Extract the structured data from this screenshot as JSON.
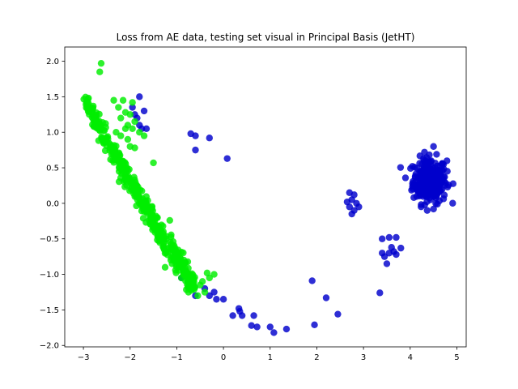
{
  "chart_data": {
    "type": "scatter",
    "title": "Loss from AE data, testing set visual in Principal Basis (JetHT)",
    "xlabel": "",
    "ylabel": "",
    "xlim": [
      -3.4,
      5.2
    ],
    "ylim": [
      -2.02,
      2.2
    ],
    "xticks": [
      -3,
      -2,
      -1,
      0,
      1,
      2,
      3,
      4,
      5
    ],
    "yticks": [
      -2.0,
      -1.5,
      -1.0,
      -0.5,
      0.0,
      0.5,
      1.0,
      1.5,
      2.0
    ],
    "xtick_labels": [
      "−3",
      "−2",
      "−1",
      "0",
      "1",
      "2",
      "3",
      "4",
      "5"
    ],
    "ytick_labels": [
      "−2.0",
      "−1.5",
      "−1.0",
      "−0.5",
      "0.0",
      "0.5",
      "1.0",
      "1.5",
      "2.0"
    ],
    "grid": false,
    "legend": "none",
    "series": [
      {
        "color": "#0000cc",
        "points": [
          [
            -1.95,
            1.35
          ],
          [
            -1.8,
            1.5
          ],
          [
            -1.7,
            1.3
          ],
          [
            -1.85,
            1.2
          ],
          [
            -1.75,
            1.05
          ],
          [
            -1.65,
            1.05
          ],
          [
            -1.9,
            1.25
          ],
          [
            -1.8,
            1.1
          ],
          [
            -2.35,
            0.75
          ],
          [
            -0.7,
            0.98
          ],
          [
            -0.6,
            0.95
          ],
          [
            -0.6,
            0.75
          ],
          [
            -0.3,
            0.92
          ],
          [
            0.08,
            0.63
          ],
          [
            -0.9,
            -1.05
          ],
          [
            -0.7,
            -1.15
          ],
          [
            -0.6,
            -1.3
          ],
          [
            -0.4,
            -1.2
          ],
          [
            -0.3,
            -1.3
          ],
          [
            -0.2,
            -1.25
          ],
          [
            -0.15,
            -1.35
          ],
          [
            0.0,
            -1.35
          ],
          [
            -0.85,
            -0.85
          ],
          [
            -0.65,
            -1.05
          ],
          [
            0.2,
            -1.58
          ],
          [
            0.33,
            -1.48
          ],
          [
            0.35,
            -1.52
          ],
          [
            0.4,
            -1.58
          ],
          [
            0.6,
            -1.72
          ],
          [
            0.65,
            -1.58
          ],
          [
            0.72,
            -1.74
          ],
          [
            1.0,
            -1.74
          ],
          [
            1.08,
            -1.82
          ],
          [
            1.35,
            -1.77
          ],
          [
            1.9,
            -1.09
          ],
          [
            1.95,
            -1.71
          ],
          [
            2.2,
            -1.33
          ],
          [
            2.45,
            -1.56
          ],
          [
            2.7,
            0.15
          ],
          [
            2.75,
            0.05
          ],
          [
            2.8,
            0.12
          ],
          [
            2.7,
            -0.05
          ],
          [
            2.8,
            -0.1
          ],
          [
            2.85,
            0.0
          ],
          [
            2.75,
            -0.15
          ],
          [
            2.9,
            -0.05
          ],
          [
            2.65,
            0.02
          ],
          [
            3.35,
            -1.26
          ],
          [
            3.4,
            -0.5
          ],
          [
            3.4,
            -0.7
          ],
          [
            3.45,
            -0.75
          ],
          [
            3.5,
            -0.85
          ],
          [
            3.55,
            -0.48
          ],
          [
            3.6,
            -0.62
          ],
          [
            3.65,
            -0.68
          ],
          [
            3.7,
            -0.48
          ],
          [
            3.55,
            -0.7
          ],
          [
            3.8,
            -0.63
          ],
          [
            3.7,
            -0.72
          ],
          [
            4.5,
            0.8
          ],
          [
            4.5,
            -0.08
          ],
          [
            4.05,
            0.28
          ],
          [
            4.2,
            0.45
          ],
          [
            4.25,
            0.55
          ],
          [
            4.3,
            0.6
          ],
          [
            4.35,
            0.1
          ],
          [
            4.6,
            0.15
          ],
          [
            4.7,
            0.35
          ]
        ],
        "cluster": {
          "cx": 4.42,
          "cy": 0.32,
          "sx": 0.18,
          "sy": 0.16,
          "n": 260
        }
      },
      {
        "color": "#00ee00",
        "points": [
          [
            -2.62,
            1.97
          ],
          [
            -2.65,
            1.85
          ],
          [
            -1.5,
            0.57
          ],
          [
            -1.15,
            -0.24
          ],
          [
            -2.3,
            1.0
          ],
          [
            -2.1,
            1.05
          ],
          [
            -2.2,
            1.2
          ],
          [
            -2.25,
            1.35
          ],
          [
            -2.05,
            1.1
          ],
          [
            -2.1,
            1.28
          ],
          [
            -1.95,
            1.42
          ],
          [
            -2.0,
            1.25
          ],
          [
            -2.35,
            1.45
          ],
          [
            -2.15,
            1.45
          ],
          [
            -1.9,
            1.15
          ],
          [
            -2.2,
            0.95
          ],
          [
            -2.05,
            0.9
          ],
          [
            -1.95,
            1.05
          ],
          [
            -1.8,
            1.0
          ],
          [
            -1.7,
            0.95
          ],
          [
            -2.0,
            0.8
          ],
          [
            -1.9,
            0.78
          ],
          [
            -1.25,
            -0.9
          ],
          [
            -1.1,
            -0.85
          ],
          [
            -0.9,
            -1.05
          ],
          [
            -0.7,
            -1.2
          ],
          [
            -0.55,
            -1.3
          ],
          [
            -0.4,
            -1.25
          ],
          [
            -0.3,
            -1.05
          ],
          [
            -0.2,
            -1.0
          ],
          [
            -0.35,
            -0.98
          ],
          [
            -0.45,
            -1.1
          ],
          [
            -0.5,
            -1.15
          ],
          [
            -0.75,
            -1.25
          ],
          [
            -0.8,
            -1.0
          ]
        ],
        "band": {
          "x_start": -2.95,
          "x_end": -0.6,
          "y_start": 1.42,
          "y_end": -1.2,
          "spread": 0.07,
          "n": 420
        }
      }
    ]
  }
}
